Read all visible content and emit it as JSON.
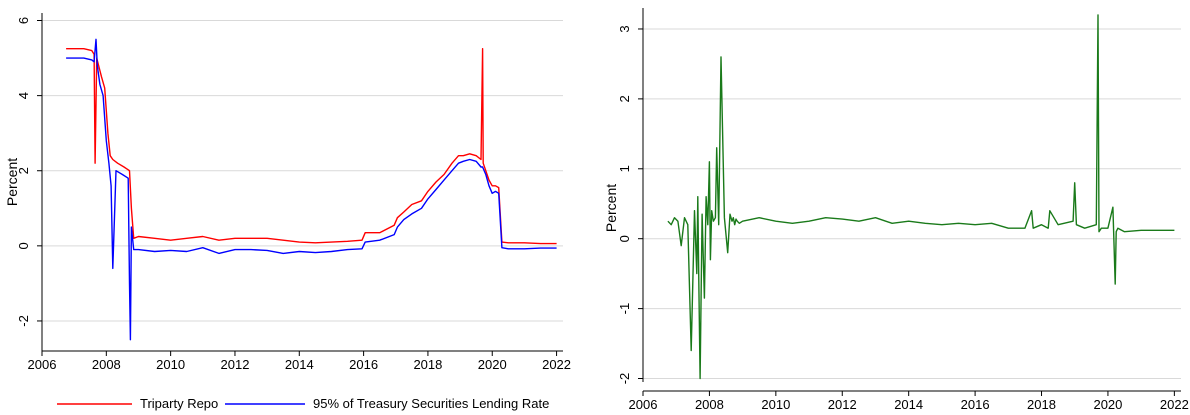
{
  "chart_data": [
    {
      "type": "line",
      "title": "",
      "xlabel": "",
      "ylabel": "Percent",
      "xlim": [
        2006,
        2022.2
      ],
      "ylim": [
        -2.8,
        6.2
      ],
      "xticks": [
        2006,
        2008,
        2010,
        2012,
        2014,
        2016,
        2018,
        2020,
        2022
      ],
      "yticks": [
        -2,
        0,
        2,
        4,
        6
      ],
      "grid": true,
      "legend_position": "bottom",
      "series": [
        {
          "name": "Triparty Repo",
          "color": "#ff0000",
          "x": [
            2006.75,
            2007.0,
            2007.3,
            2007.55,
            2007.62,
            2007.65,
            2007.7,
            2007.85,
            2007.95,
            2008.05,
            2008.12,
            2008.2,
            2008.35,
            2008.55,
            2008.72,
            2008.78,
            2008.85,
            2009.0,
            2009.5,
            2010.0,
            2010.5,
            2011.0,
            2011.5,
            2012.0,
            2012.5,
            2013.0,
            2013.5,
            2014.0,
            2014.5,
            2015.0,
            2015.5,
            2015.95,
            2016.05,
            2016.5,
            2016.95,
            2017.05,
            2017.25,
            2017.5,
            2017.8,
            2018.0,
            2018.25,
            2018.5,
            2018.75,
            2018.95,
            2019.1,
            2019.3,
            2019.5,
            2019.65,
            2019.7,
            2019.72,
            2019.8,
            2019.9,
            2020.0,
            2020.1,
            2020.2,
            2020.3,
            2020.5,
            2021.0,
            2021.5,
            2022.0
          ],
          "y": [
            5.25,
            5.25,
            5.25,
            5.2,
            5.1,
            2.2,
            5.0,
            4.5,
            4.2,
            3.0,
            2.4,
            2.3,
            2.2,
            2.1,
            2.0,
            1.0,
            0.2,
            0.25,
            0.2,
            0.15,
            0.2,
            0.25,
            0.15,
            0.2,
            0.2,
            0.2,
            0.15,
            0.1,
            0.08,
            0.1,
            0.12,
            0.15,
            0.35,
            0.35,
            0.55,
            0.75,
            0.9,
            1.1,
            1.2,
            1.45,
            1.7,
            1.9,
            2.2,
            2.4,
            2.4,
            2.45,
            2.4,
            2.3,
            5.25,
            2.2,
            2.0,
            1.75,
            1.6,
            1.6,
            1.55,
            0.1,
            0.08,
            0.08,
            0.06,
            0.06
          ]
        },
        {
          "name": "95% of Treasury Securities Lending Rate",
          "color": "#0000ff",
          "x": [
            2006.75,
            2007.0,
            2007.3,
            2007.55,
            2007.62,
            2007.68,
            2007.72,
            2007.8,
            2007.9,
            2008.0,
            2008.08,
            2008.15,
            2008.2,
            2008.3,
            2008.5,
            2008.68,
            2008.72,
            2008.75,
            2008.78,
            2008.85,
            2009.0,
            2009.5,
            2010.0,
            2010.5,
            2011.0,
            2011.5,
            2012.0,
            2012.5,
            2013.0,
            2013.5,
            2014.0,
            2014.5,
            2015.0,
            2015.5,
            2015.95,
            2016.05,
            2016.5,
            2016.95,
            2017.05,
            2017.25,
            2017.5,
            2017.8,
            2018.0,
            2018.25,
            2018.5,
            2018.75,
            2018.95,
            2019.1,
            2019.3,
            2019.5,
            2019.65,
            2019.7,
            2019.8,
            2019.9,
            2020.0,
            2020.1,
            2020.2,
            2020.3,
            2020.5,
            2021.0,
            2021.5,
            2022.0
          ],
          "y": [
            5.0,
            5.0,
            5.0,
            4.95,
            4.9,
            5.5,
            4.8,
            4.3,
            4.0,
            2.8,
            2.2,
            1.6,
            -0.6,
            2.0,
            1.9,
            1.8,
            -1.0,
            -2.5,
            0.5,
            -0.1,
            -0.1,
            -0.15,
            -0.12,
            -0.15,
            -0.05,
            -0.2,
            -0.1,
            -0.1,
            -0.12,
            -0.2,
            -0.15,
            -0.18,
            -0.15,
            -0.1,
            -0.08,
            0.1,
            0.15,
            0.3,
            0.5,
            0.7,
            0.85,
            1.0,
            1.25,
            1.5,
            1.75,
            2.0,
            2.2,
            2.25,
            2.3,
            2.25,
            2.1,
            2.1,
            1.9,
            1.6,
            1.4,
            1.45,
            1.4,
            -0.05,
            -0.08,
            -0.08,
            -0.06,
            -0.06
          ]
        }
      ]
    },
    {
      "type": "line",
      "title": "",
      "xlabel": "",
      "ylabel": "Percent",
      "xlim": [
        2006,
        2022.2
      ],
      "ylim": [
        -2.05,
        3.3
      ],
      "xticks": [
        2006,
        2008,
        2010,
        2012,
        2014,
        2016,
        2018,
        2020,
        2022
      ],
      "yticks": [
        -2,
        -1,
        0,
        1,
        2,
        3
      ],
      "grid": true,
      "series": [
        {
          "color": "#1a7a1a",
          "x": [
            2006.75,
            2006.85,
            2006.95,
            2007.05,
            2007.15,
            2007.25,
            2007.35,
            2007.45,
            2007.55,
            2007.62,
            2007.65,
            2007.68,
            2007.72,
            2007.78,
            2007.85,
            2007.9,
            2007.95,
            2008.0,
            2008.03,
            2008.07,
            2008.12,
            2008.18,
            2008.22,
            2008.28,
            2008.35,
            2008.45,
            2008.55,
            2008.62,
            2008.68,
            2008.72,
            2008.76,
            2008.8,
            2008.84,
            2008.9,
            2009.0,
            2009.5,
            2010.0,
            2010.5,
            2011.0,
            2011.5,
            2012.0,
            2012.5,
            2013.0,
            2013.5,
            2014.0,
            2014.5,
            2015.0,
            2015.5,
            2016.0,
            2016.5,
            2017.0,
            2017.5,
            2017.7,
            2017.75,
            2018.0,
            2018.2,
            2018.25,
            2018.5,
            2018.95,
            2019.0,
            2019.05,
            2019.3,
            2019.65,
            2019.7,
            2019.73,
            2019.8,
            2020.0,
            2020.15,
            2020.22,
            2020.25,
            2020.3,
            2020.5,
            2021.0,
            2021.5,
            2022.0
          ],
          "y": [
            0.25,
            0.2,
            0.3,
            0.25,
            -0.1,
            0.3,
            0.2,
            -1.6,
            0.4,
            -0.5,
            0.6,
            -0.6,
            -2.0,
            0.35,
            -0.85,
            0.6,
            0.2,
            1.1,
            -0.3,
            0.4,
            0.25,
            0.3,
            1.3,
            0.2,
            2.6,
            0.3,
            -0.2,
            0.35,
            0.25,
            0.3,
            0.2,
            0.28,
            0.25,
            0.22,
            0.25,
            0.3,
            0.25,
            0.22,
            0.25,
            0.3,
            0.28,
            0.25,
            0.3,
            0.22,
            0.25,
            0.22,
            0.2,
            0.22,
            0.2,
            0.22,
            0.15,
            0.15,
            0.4,
            0.15,
            0.2,
            0.15,
            0.4,
            0.2,
            0.25,
            0.8,
            0.2,
            0.15,
            0.2,
            3.2,
            0.1,
            0.15,
            0.15,
            0.45,
            -0.65,
            0.1,
            0.15,
            0.1,
            0.12,
            0.12,
            0.12
          ]
        }
      ]
    }
  ]
}
